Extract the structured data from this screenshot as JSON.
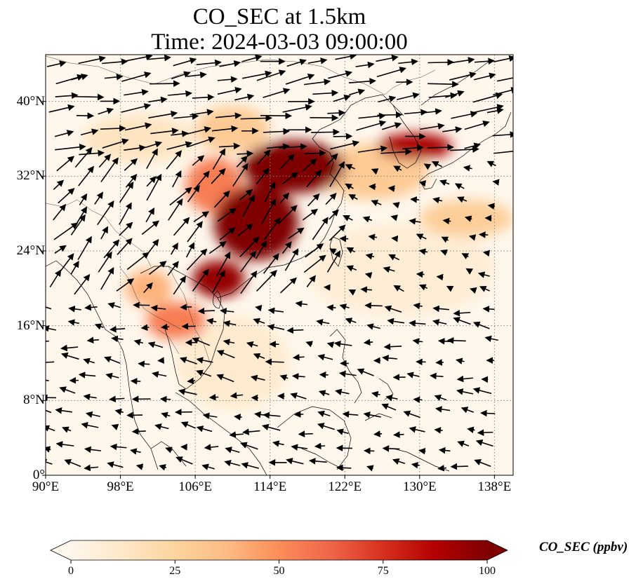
{
  "title": {
    "line1": "CO_SEC at 1.5km",
    "line2": "Time: 2024-03-03 09:00:00"
  },
  "map": {
    "projection": "PlateCarree",
    "lon_range": [
      90,
      140
    ],
    "lat_range": [
      0,
      45
    ],
    "gridlines": "dotted grey",
    "lat_ticks": [
      {
        "value": 0,
        "label": "0°"
      },
      {
        "value": 8,
        "label": "8°N"
      },
      {
        "value": 16,
        "label": "16°N"
      },
      {
        "value": 24,
        "label": "24°N"
      },
      {
        "value": 32,
        "label": "32°N"
      },
      {
        "value": 40,
        "label": "40°N"
      }
    ],
    "lon_ticks": [
      {
        "value": 90,
        "label": "90°E"
      },
      {
        "value": 98,
        "label": "98°E"
      },
      {
        "value": 106,
        "label": "106°E"
      },
      {
        "value": 114,
        "label": "114°E"
      },
      {
        "value": 122,
        "label": "122°E"
      },
      {
        "value": 130,
        "label": "130°E"
      },
      {
        "value": 138,
        "label": "138°E"
      }
    ]
  },
  "colorbar": {
    "label": "CO_SEC (ppbv)",
    "min": 0,
    "max": 100,
    "extend": "both",
    "colormap": "OrRd",
    "ticks": [
      {
        "value": 0,
        "label": "0"
      },
      {
        "value": 25,
        "label": "25"
      },
      {
        "value": 50,
        "label": "50"
      },
      {
        "value": 75,
        "label": "75"
      },
      {
        "value": 100,
        "label": "100"
      }
    ],
    "stops": [
      "#fff7ec",
      "#fee8c8",
      "#fdd49e",
      "#fdbb84",
      "#fc8d59",
      "#ef6548",
      "#d7301f",
      "#b30000",
      "#7f0000"
    ]
  },
  "plumes": [
    {
      "lon": 116.5,
      "lat": 33.0,
      "rlon": 5.5,
      "rlat": 2.8,
      "value": 100
    },
    {
      "lon": 112.5,
      "lat": 27.0,
      "rlon": 4.5,
      "rlat": 4.0,
      "value": 100
    },
    {
      "lon": 108.5,
      "lat": 21.0,
      "rlon": 2.8,
      "rlat": 2.0,
      "value": 95
    },
    {
      "lon": 129.5,
      "lat": 35.2,
      "rlon": 4.0,
      "rlat": 1.4,
      "value": 90
    },
    {
      "lon": 108.0,
      "lat": 31.0,
      "rlon": 3.0,
      "rlat": 3.0,
      "value": 55
    },
    {
      "lon": 104.0,
      "lat": 16.5,
      "rlon": 3.2,
      "rlat": 2.0,
      "value": 55
    },
    {
      "lon": 125.0,
      "lat": 32.5,
      "rlon": 6.0,
      "rlat": 3.0,
      "value": 30
    },
    {
      "lon": 135.0,
      "lat": 27.5,
      "rlon": 5.0,
      "rlat": 2.0,
      "value": 28
    },
    {
      "lon": 101.0,
      "lat": 20.0,
      "rlon": 2.5,
      "rlat": 2.0,
      "value": 40
    },
    {
      "lon": 110.0,
      "lat": 37.0,
      "rlon": 4.0,
      "rlat": 2.5,
      "value": 30
    },
    {
      "lon": 100.0,
      "lat": 36.0,
      "rlon": 6.0,
      "rlat": 2.5,
      "value": 15
    },
    {
      "lon": 110.0,
      "lat": 12.0,
      "rlon": 6.0,
      "rlat": 5.0,
      "value": 10
    },
    {
      "lon": 128.0,
      "lat": 22.0,
      "rlon": 10.0,
      "rlat": 5.0,
      "value": 8
    }
  ]
}
